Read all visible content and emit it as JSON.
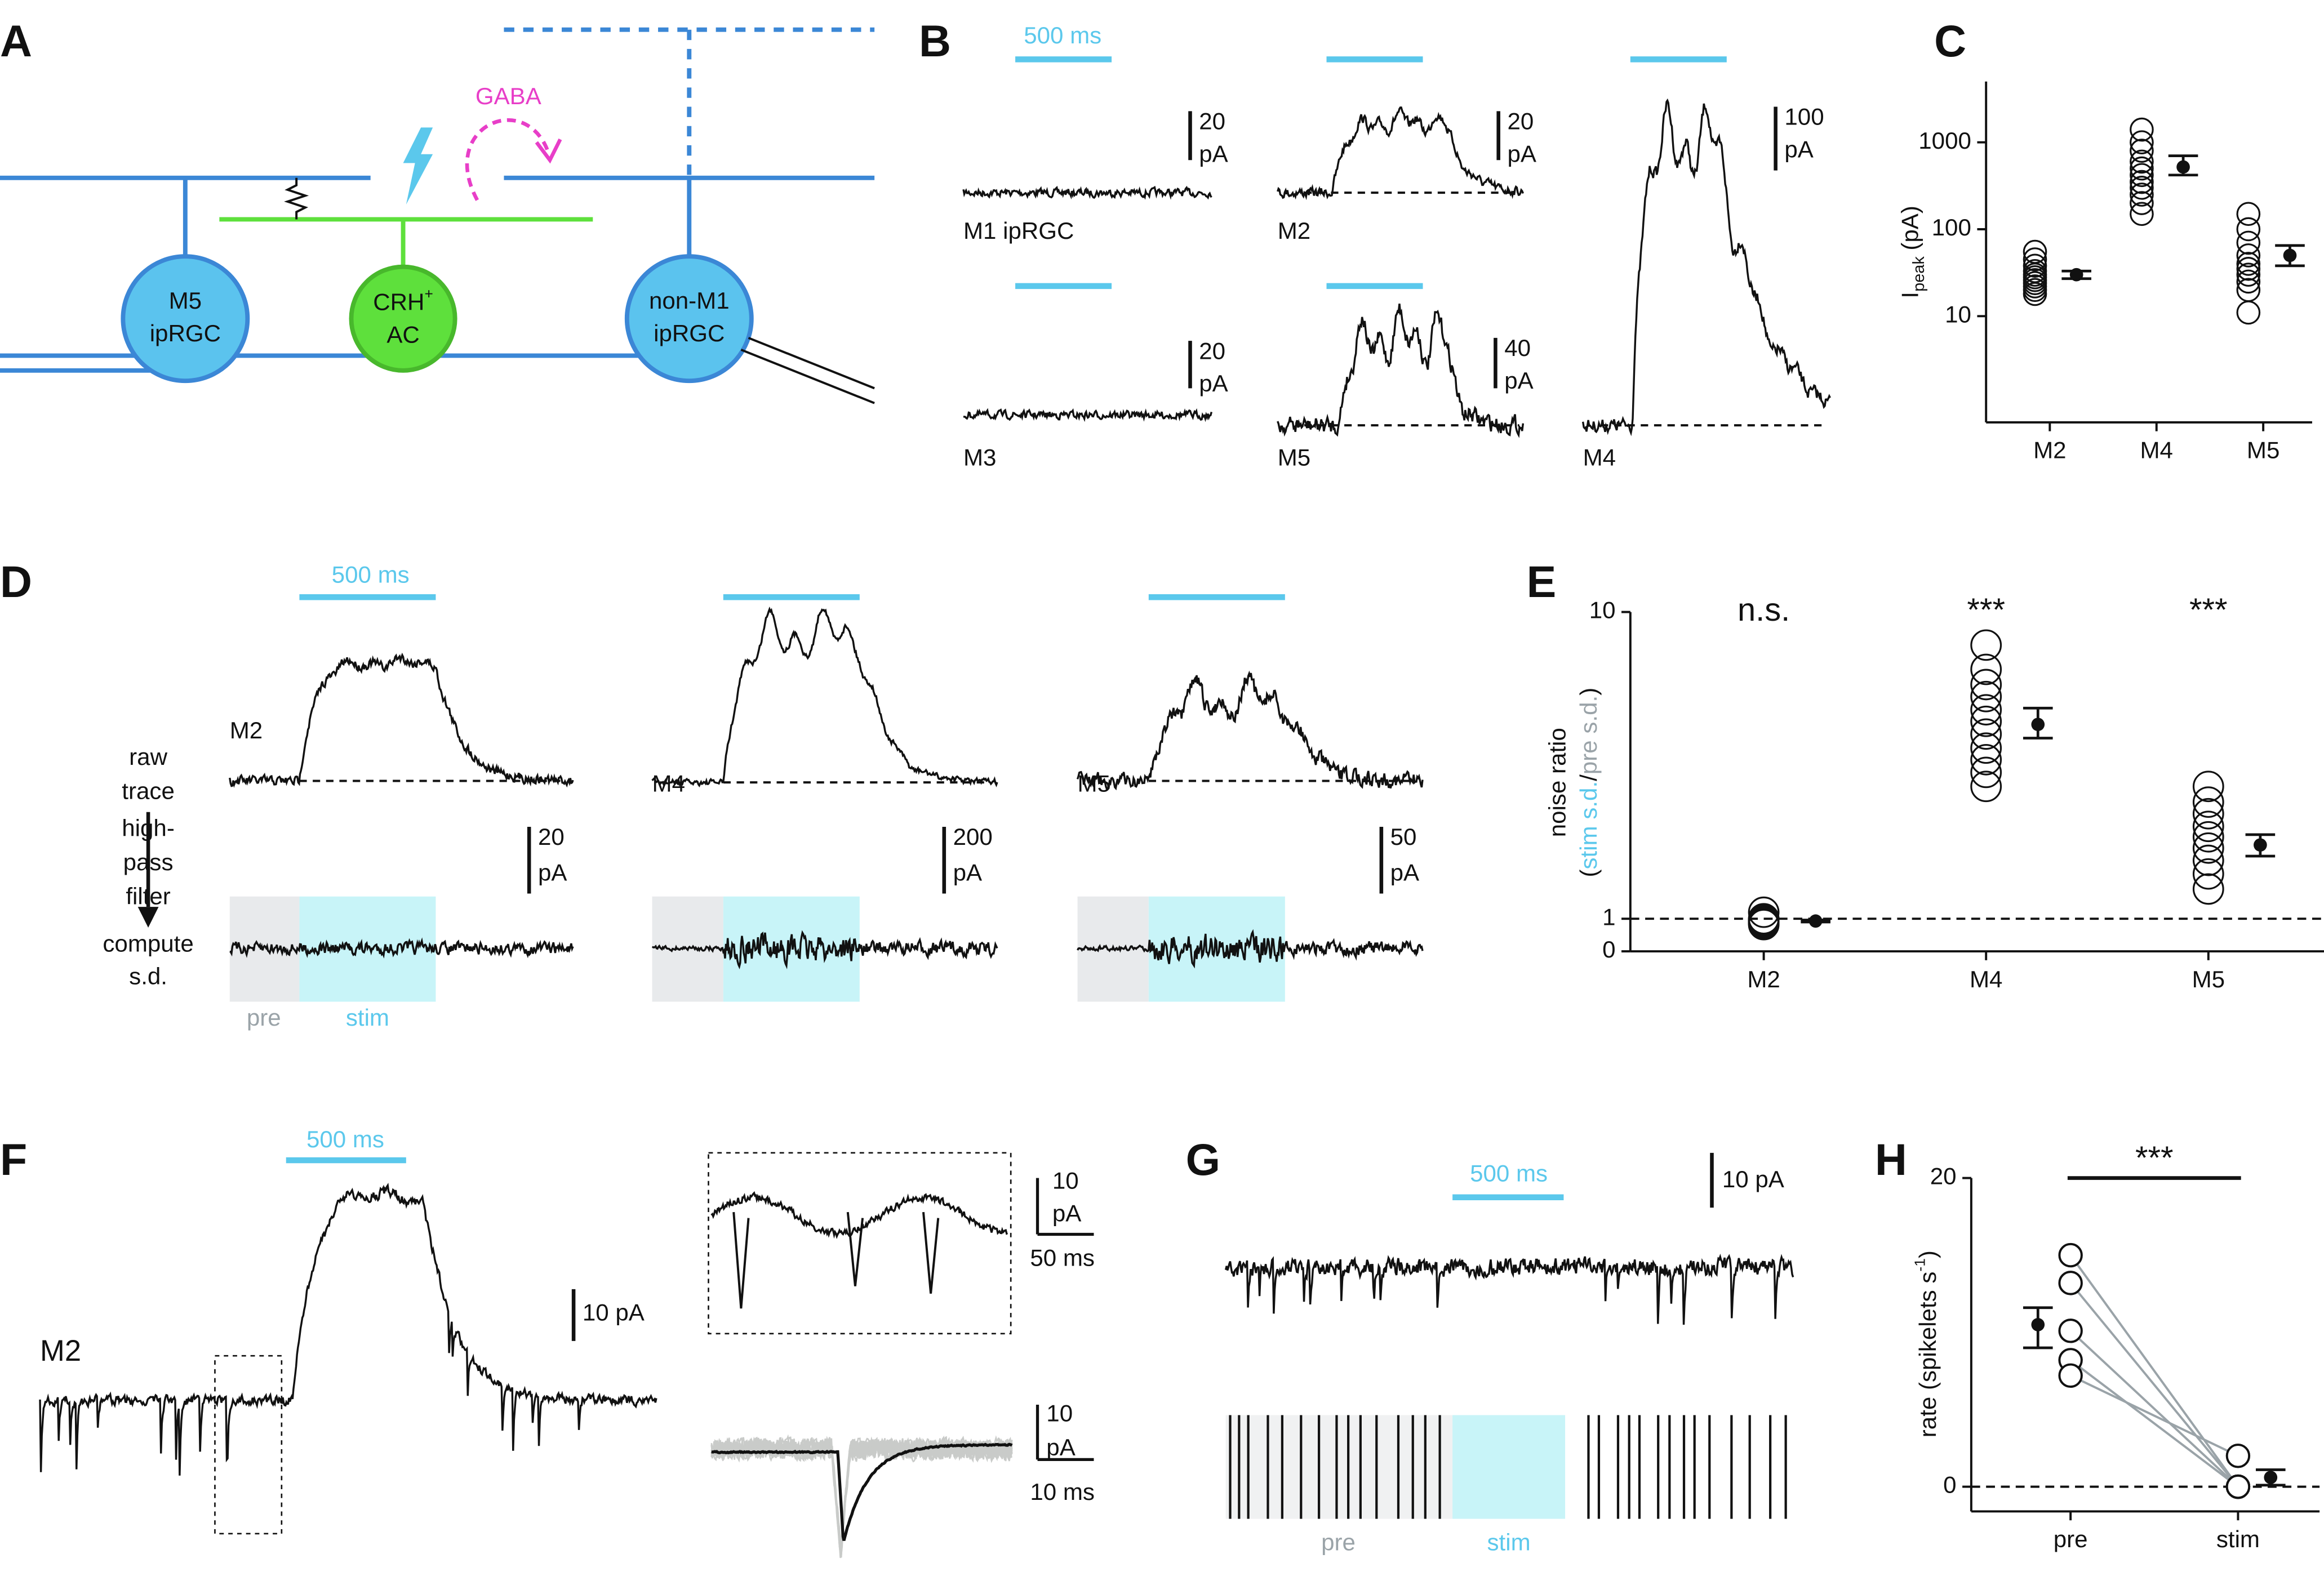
{
  "panels": {
    "A": {
      "letter": "A",
      "gaba": "GABA",
      "m5": [
        "M5",
        "ipRGC"
      ],
      "crh": [
        "CRH",
        "+",
        "AC"
      ],
      "nonm1": [
        "non-M1",
        "ipRGC"
      ]
    },
    "B": {
      "letter": "B",
      "time_scale": "500 ms",
      "scales": [
        [
          "20",
          "pA"
        ],
        [
          "20",
          "pA"
        ],
        [
          "100",
          "pA"
        ],
        [
          "20",
          "pA"
        ],
        [
          "40",
          "pA"
        ]
      ],
      "cells": [
        "M1 ipRGC",
        "M2",
        "M4",
        "M3",
        "M5"
      ]
    },
    "C": {
      "letter": "C"
    },
    "D": {
      "letter": "D",
      "time_scale": "500 ms",
      "cells": [
        "M2",
        "M4",
        "M5"
      ],
      "steps": [
        "raw",
        "trace",
        "high-",
        "pass",
        "filter",
        "compute",
        "s.d."
      ],
      "scales": [
        [
          "20",
          "pA"
        ],
        [
          "200",
          "pA"
        ],
        [
          "50",
          "pA"
        ]
      ],
      "windows": [
        "pre",
        "stim"
      ]
    },
    "E": {
      "letter": "E"
    },
    "F": {
      "letter": "F",
      "time_scale": "500 ms",
      "cell": "M2",
      "scale": "10 pA",
      "inset_scales": [
        [
          "10",
          "pA",
          "50 ms"
        ],
        [
          "10",
          "pA",
          "10 ms"
        ]
      ]
    },
    "G": {
      "letter": "G",
      "time_scale": "500 ms",
      "scale": "10 pA",
      "windows": [
        "pre",
        "stim"
      ]
    },
    "H": {
      "letter": "H"
    }
  },
  "chart_data": [
    {
      "type": "dot",
      "y_label": [
        "I",
        "peak",
        "(pA)"
      ],
      "categories": [
        "M2",
        "M4",
        "M5"
      ],
      "yscale": "log",
      "ylim": [
        0.6,
        5000
      ],
      "yticks": [
        10,
        100,
        1000
      ],
      "points": [
        [
          18,
          20,
          22,
          24,
          26,
          28,
          30,
          33,
          38,
          45,
          55
        ],
        [
          150,
          200,
          250,
          300,
          350,
          420,
          500,
          600,
          800,
          1000,
          1400
        ],
        [
          11,
          20,
          25,
          30,
          35,
          40,
          50,
          70,
          100,
          150
        ]
      ],
      "mean": [
        30,
        520,
        50
      ],
      "error_low": [
        27,
        420,
        38
      ],
      "error_high": [
        33,
        700,
        65
      ],
      "color": "#111111"
    },
    {
      "type": "dot",
      "y_label": [
        "noise ratio",
        "(",
        "stim s.d.",
        "/",
        "pre s.d.",
        ")"
      ],
      "categories": [
        "M2",
        "M4",
        "M5"
      ],
      "yscale": "symlog",
      "ylim": [
        0,
        10
      ],
      "yticks": [
        0,
        1,
        10
      ],
      "reference": 1,
      "annotations": [
        "n.s.",
        "***",
        "***"
      ],
      "points": [
        [
          0.82,
          0.85,
          0.88,
          0.9,
          0.93,
          0.95,
          0.98,
          1.0,
          1.05
        ],
        [
          2.7,
          3,
          3.3,
          3.6,
          4,
          4.4,
          4.8,
          5.3,
          5.8,
          6.5,
          7.8
        ],
        [
          1.25,
          1.4,
          1.55,
          1.7,
          1.85,
          2,
          2.2,
          2.4,
          2.7
        ]
      ],
      "mean": [
        0.93,
        4.3,
        1.74
      ],
      "error_low": [
        0.9,
        3.88,
        1.6
      ],
      "error_high": [
        0.96,
        4.86,
        1.88
      ],
      "color": "#111111"
    },
    {
      "type": "paired",
      "y_label": [
        "rate (spikelets s",
        "-1",
        ")"
      ],
      "categories": [
        "pre",
        "stim"
      ],
      "yscale": "linear",
      "ylim": [
        -1.6,
        20
      ],
      "yticks": [
        0,
        20
      ],
      "reference": 0,
      "annotation": "***",
      "points": [
        [
          15,
          13.2,
          10.1,
          8.2,
          7.2
        ],
        [
          0,
          0,
          0,
          0,
          2
        ]
      ],
      "mean": [
        10.5,
        0.6
      ],
      "error_low": [
        9,
        0.1
      ],
      "error_high": [
        11.6,
        1.1
      ],
      "color": "#111111",
      "pair_color": "#9aa3a8"
    }
  ]
}
